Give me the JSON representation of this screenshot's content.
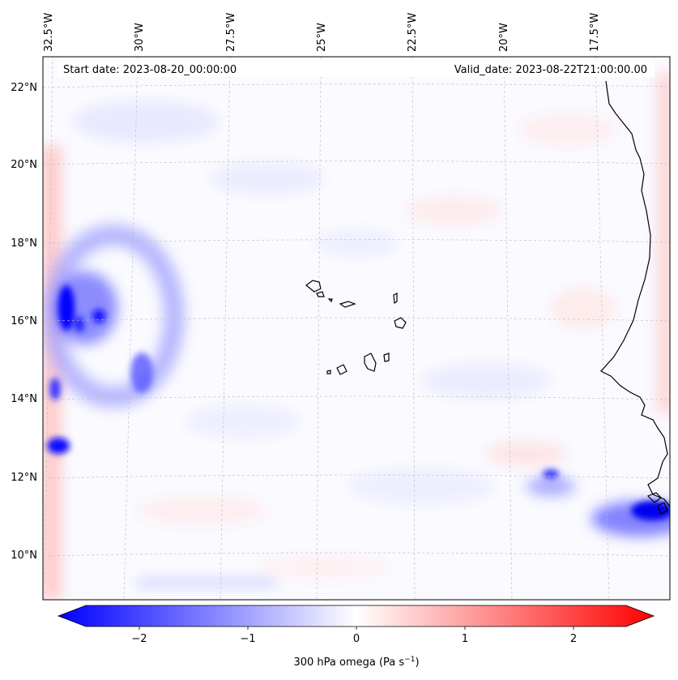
{
  "map": {
    "top_lon_labels": [
      "32.5°W",
      "30°W",
      "27.5°W",
      "25°W",
      "22.5°W",
      "20°W",
      "17.5°W"
    ],
    "left_lat_labels": [
      "22°N",
      "20°N",
      "18°N",
      "16°N",
      "14°N",
      "12°N",
      "10°N"
    ],
    "start_date_text": "Start date: 2023-08-20_00:00:00",
    "valid_date_text": "Valid_date: 2023-08-22T21:00:00.00"
  },
  "colorbar": {
    "tick_labels": [
      "−2",
      "−1",
      "0",
      "1",
      "2"
    ],
    "label_prefix": "300 hPa omega (Pa s",
    "label_exponent": "−1",
    "label_suffix": ")",
    "colors": {
      "negative": "#0000ff",
      "zero": "#ffffff",
      "positive": "#ff0000"
    }
  }
}
